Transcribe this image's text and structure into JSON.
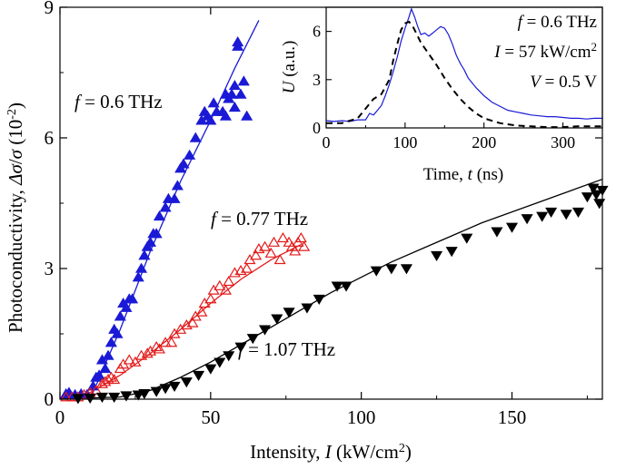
{
  "chart_data": [
    {
      "type": "scatter",
      "xlabel": {
        "prefix": "Intensity, ",
        "var": "I",
        "unit_pre": " (kW/cm",
        "sup": "2",
        "unit_post": ")"
      },
      "ylabel": {
        "prefix": "Photoconductivity, ",
        "var1": "Δσ",
        "slash": "/",
        "var2": "σ",
        "unit_pre": " (10",
        "sup": "-2",
        "unit_post": ")"
      },
      "xlim": [
        0,
        180
      ],
      "ylim": [
        0,
        9
      ],
      "xticks": [
        0,
        50,
        100,
        150
      ],
      "xtick_labels": [
        "0",
        "50",
        "100",
        "150"
      ],
      "yticks": [
        0,
        3,
        6,
        9
      ],
      "ytick_labels": [
        "0",
        "3",
        "6",
        "9"
      ],
      "grid": false,
      "series": [
        {
          "name": "f = 0.6 THz",
          "label_var": "f",
          "label_rest": " = 0.6 THz",
          "color": "#1a1ad6",
          "marker": "triangle-up-filled",
          "points": [
            [
              2,
              0.12
            ],
            [
              3,
              0.15
            ],
            [
              5,
              0.1
            ],
            [
              7,
              0.12
            ],
            [
              9,
              0.1
            ],
            [
              11,
              0.3
            ],
            [
              12,
              0.5
            ],
            [
              13,
              0.55
            ],
            [
              14,
              0.9
            ],
            [
              15,
              0.7
            ],
            [
              16,
              1.0
            ],
            [
              17,
              1.3
            ],
            [
              18,
              1.6
            ],
            [
              19,
              1.5
            ],
            [
              20,
              1.9
            ],
            [
              21,
              2.2
            ],
            [
              22,
              2.1
            ],
            [
              23,
              2.3
            ],
            [
              24,
              2.3
            ],
            [
              26,
              2.8
            ],
            [
              27,
              3.0
            ],
            [
              28,
              3.3
            ],
            [
              29,
              3.5
            ],
            [
              30,
              3.6
            ],
            [
              31,
              3.8
            ],
            [
              32,
              3.8
            ],
            [
              33,
              4.2
            ],
            [
              35,
              4.4
            ],
            [
              36,
              4.6
            ],
            [
              38,
              4.6
            ],
            [
              39,
              4.9
            ],
            [
              40,
              5.3
            ],
            [
              41,
              5.4
            ],
            [
              43,
              5.6
            ],
            [
              45,
              6.0
            ],
            [
              47,
              6.4
            ],
            [
              48,
              6.6
            ],
            [
              49,
              6.5
            ],
            [
              50,
              6.4
            ],
            [
              51,
              6.8
            ],
            [
              52,
              6.6
            ],
            [
              54,
              6.6
            ],
            [
              55,
              7.0
            ],
            [
              55,
              6.5
            ],
            [
              56,
              6.9
            ],
            [
              57,
              7.0
            ],
            [
              58,
              7.2
            ],
            [
              58,
              6.7
            ],
            [
              59,
              8.1
            ],
            [
              59,
              8.2
            ],
            [
              60,
              7.0
            ],
            [
              61,
              7.3
            ],
            [
              62,
              6.5
            ]
          ],
          "fit": [
            [
              10,
              0
            ],
            [
              20,
              1.6
            ],
            [
              30,
              3.4
            ],
            [
              40,
              5.0
            ],
            [
              50,
              6.4
            ],
            [
              58,
              7.6
            ],
            [
              66,
              8.7
            ]
          ]
        },
        {
          "name": "f = 0.77 THz",
          "label_var": "f",
          "label_rest": " = 0.77 THz",
          "color": "#e31a1a",
          "marker": "triangle-up-open",
          "points": [
            [
              2,
              0.05
            ],
            [
              4,
              0.05
            ],
            [
              6,
              0.05
            ],
            [
              8,
              0.1
            ],
            [
              10,
              0.15
            ],
            [
              12,
              0.2
            ],
            [
              14,
              0.35
            ],
            [
              15,
              0.4
            ],
            [
              16,
              0.45
            ],
            [
              17,
              0.5
            ],
            [
              18,
              0.45
            ],
            [
              20,
              0.7
            ],
            [
              21,
              0.8
            ],
            [
              23,
              0.9
            ],
            [
              25,
              0.85
            ],
            [
              27,
              1.0
            ],
            [
              29,
              1.05
            ],
            [
              30,
              1.1
            ],
            [
              32,
              1.2
            ],
            [
              33,
              1.15
            ],
            [
              35,
              1.3
            ],
            [
              37,
              1.3
            ],
            [
              38,
              1.5
            ],
            [
              40,
              1.6
            ],
            [
              42,
              1.7
            ],
            [
              44,
              1.75
            ],
            [
              45,
              1.9
            ],
            [
              47,
              2.0
            ],
            [
              48,
              2.2
            ],
            [
              50,
              2.3
            ],
            [
              51,
              2.5
            ],
            [
              53,
              2.6
            ],
            [
              55,
              2.5
            ],
            [
              56,
              2.7
            ],
            [
              58,
              2.9
            ],
            [
              60,
              2.95
            ],
            [
              62,
              3.0
            ],
            [
              63,
              3.2
            ],
            [
              65,
              3.3
            ],
            [
              66,
              3.45
            ],
            [
              68,
              3.5
            ],
            [
              70,
              3.35
            ],
            [
              71,
              3.6
            ],
            [
              73,
              3.2
            ],
            [
              74,
              3.7
            ],
            [
              76,
              3.6
            ],
            [
              77,
              3.5
            ],
            [
              78,
              3.4
            ],
            [
              79,
              3.6
            ],
            [
              80,
              3.7
            ],
            [
              81,
              3.5
            ]
          ],
          "fit": [
            [
              0,
              0
            ],
            [
              10,
              0.15
            ],
            [
              20,
              0.55
            ],
            [
              30,
              1.05
            ],
            [
              40,
              1.6
            ],
            [
              50,
              2.2
            ],
            [
              60,
              2.75
            ],
            [
              70,
              3.2
            ],
            [
              80,
              3.55
            ]
          ]
        },
        {
          "name": "f = 1.07 THz",
          "label_var": "f",
          "label_rest": " = 1.07 THz",
          "color": "#000000",
          "marker": "triangle-down-filled",
          "points": [
            [
              6,
              0.02
            ],
            [
              10,
              0.03
            ],
            [
              14,
              0.05
            ],
            [
              18,
              0.05
            ],
            [
              22,
              0.08
            ],
            [
              26,
              0.1
            ],
            [
              28,
              0.13
            ],
            [
              32,
              0.18
            ],
            [
              35,
              0.25
            ],
            [
              38,
              0.3
            ],
            [
              42,
              0.4
            ],
            [
              46,
              0.55
            ],
            [
              50,
              0.7
            ],
            [
              53,
              0.85
            ],
            [
              56,
              1.0
            ],
            [
              60,
              1.2
            ],
            [
              64,
              1.4
            ],
            [
              68,
              1.6
            ],
            [
              72,
              1.85
            ],
            [
              76,
              2.0
            ],
            [
              82,
              2.1
            ],
            [
              86,
              2.3
            ],
            [
              92,
              2.6
            ],
            [
              95,
              2.6
            ],
            [
              105,
              2.95
            ],
            [
              110,
              3.0
            ],
            [
              115,
              3.0
            ],
            [
              125,
              3.3
            ],
            [
              130,
              3.4
            ],
            [
              135,
              3.7
            ],
            [
              145,
              3.85
            ],
            [
              150,
              3.95
            ],
            [
              155,
              4.15
            ],
            [
              160,
              4.2
            ],
            [
              163,
              4.3
            ],
            [
              168,
              4.25
            ],
            [
              172,
              4.3
            ],
            [
              175,
              4.65
            ],
            [
              177,
              4.85
            ],
            [
              178,
              4.7
            ],
            [
              179,
              4.5
            ],
            [
              180,
              4.8
            ]
          ],
          "fit": [
            [
              0,
              0
            ],
            [
              20,
              0.05
            ],
            [
              30,
              0.2
            ],
            [
              40,
              0.5
            ],
            [
              50,
              0.85
            ],
            [
              60,
              1.25
            ],
            [
              70,
              1.65
            ],
            [
              80,
              2.05
            ],
            [
              90,
              2.45
            ],
            [
              100,
              2.8
            ],
            [
              110,
              3.15
            ],
            [
              120,
              3.45
            ],
            [
              130,
              3.75
            ],
            [
              140,
              4.05
            ],
            [
              150,
              4.3
            ],
            [
              160,
              4.55
            ],
            [
              170,
              4.8
            ],
            [
              180,
              5.05
            ]
          ]
        }
      ]
    },
    {
      "type": "line",
      "inset": true,
      "xlabel": {
        "prefix": "Time, ",
        "var": "t",
        "unit": " (ns)"
      },
      "ylabel": {
        "var": "U",
        "unit": " (a.u.)"
      },
      "xlim": [
        0,
        350
      ],
      "ylim": [
        0,
        7.5
      ],
      "xticks": [
        0,
        100,
        200,
        300
      ],
      "xtick_labels": [
        "0",
        "100",
        "200",
        "300"
      ],
      "yticks": [
        0,
        3,
        6
      ],
      "ytick_labels": [
        "0",
        "3",
        "6"
      ],
      "annotations": [
        {
          "var": "f",
          "rest": " = 0.6 THz",
          "sup": ""
        },
        {
          "var": "I",
          "rest": " = 57 kW/cm",
          "sup": "2"
        },
        {
          "var": "V",
          "rest": " = 0.5 V",
          "sup": ""
        }
      ],
      "series": [
        {
          "style": "solid",
          "color": "#1a1ad6",
          "x": [
            0,
            10,
            20,
            30,
            40,
            50,
            55,
            60,
            65,
            70,
            75,
            80,
            85,
            90,
            95,
            100,
            105,
            108,
            112,
            116,
            120,
            125,
            130,
            135,
            140,
            145,
            150,
            155,
            160,
            165,
            170,
            175,
            180,
            190,
            200,
            210,
            220,
            230,
            240,
            250,
            260,
            270,
            280,
            290,
            300,
            310,
            320,
            330,
            340,
            350
          ],
          "y": [
            0.45,
            0.4,
            0.45,
            0.4,
            0.5,
            0.5,
            0.9,
            0.8,
            1.1,
            1.4,
            2.0,
            2.7,
            3.5,
            4.4,
            5.4,
            6.2,
            6.9,
            7.4,
            6.9,
            6.3,
            5.8,
            5.9,
            5.7,
            5.9,
            6.1,
            6.3,
            6.2,
            5.8,
            5.2,
            4.5,
            4.0,
            3.6,
            3.1,
            2.5,
            2.0,
            1.6,
            1.35,
            1.1,
            1.0,
            0.9,
            0.8,
            0.75,
            0.7,
            0.7,
            0.65,
            0.6,
            0.6,
            0.55,
            0.6,
            0.6
          ]
        },
        {
          "style": "dashed",
          "color": "#000000",
          "x": [
            0,
            20,
            40,
            50,
            60,
            70,
            80,
            85,
            90,
            95,
            100,
            105,
            110,
            115,
            120,
            130,
            140,
            150,
            160,
            170,
            180,
            190,
            200,
            220,
            240,
            260,
            280,
            300,
            320,
            340,
            350
          ],
          "y": [
            0.3,
            0.3,
            0.6,
            1.2,
            1.8,
            2.1,
            3.0,
            4.2,
            5.2,
            6.1,
            6.5,
            6.6,
            6.3,
            5.8,
            5.3,
            4.6,
            3.9,
            3.1,
            2.4,
            1.8,
            1.3,
            0.9,
            0.6,
            0.3,
            0.15,
            0.1,
            0.05,
            0.05,
            0.1,
            0.1,
            0.1
          ]
        }
      ]
    }
  ]
}
